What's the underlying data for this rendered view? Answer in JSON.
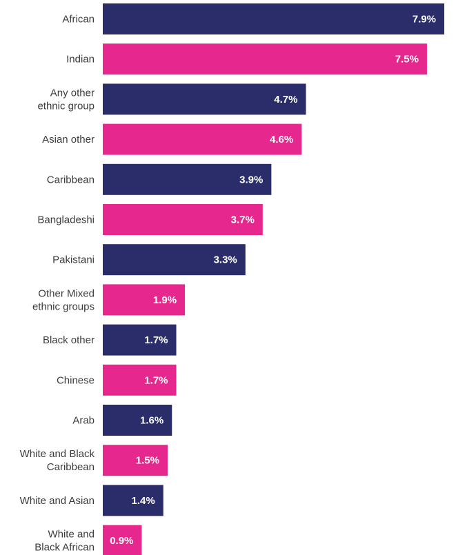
{
  "chart_data": {
    "type": "bar",
    "orientation": "horizontal",
    "title": "",
    "xlabel": "",
    "ylabel": "",
    "xlim": [
      0,
      7.9
    ],
    "grid": false,
    "legend": "none",
    "value_suffix": "%",
    "categories": [
      "African",
      "Indian",
      "Any other\nethnic group",
      "Asian other",
      "Caribbean",
      "Bangladeshi",
      "Pakistani",
      "Other Mixed\nethnic groups",
      "Black other",
      "Chinese",
      "Arab",
      "White and Black\nCaribbean",
      "White and Asian",
      "White and\nBlack African"
    ],
    "values": [
      7.9,
      7.5,
      4.7,
      4.6,
      3.9,
      3.7,
      3.3,
      1.9,
      1.7,
      1.7,
      1.6,
      1.5,
      1.4,
      0.9
    ],
    "value_labels": [
      "7.9%",
      "7.5%",
      "4.7%",
      "4.6%",
      "3.9%",
      "3.7%",
      "3.3%",
      "1.9%",
      "1.7%",
      "1.7%",
      "1.6%",
      "1.5%",
      "1.4%",
      "0.9%"
    ],
    "colors": {
      "navy": "#2b2d6b",
      "pink": "#e6278e"
    },
    "color_pattern": [
      "navy",
      "pink"
    ]
  }
}
